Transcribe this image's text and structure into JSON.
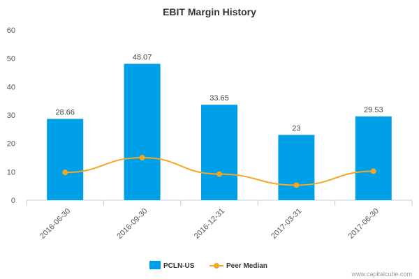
{
  "chart_data": {
    "type": "bar",
    "title": "EBIT Margin History",
    "categories": [
      "2016-06-30",
      "2016-09-30",
      "2016-12-31",
      "2017-03-31",
      "2017-06-30"
    ],
    "series": [
      {
        "name": "PCLN-US",
        "type": "bar",
        "color": "#00a0e9",
        "values": [
          28.66,
          48.07,
          33.65,
          23,
          29.53
        ],
        "labels": [
          "28.66",
          "48.07",
          "33.65",
          "23",
          "29.53"
        ]
      },
      {
        "name": "Peer Median",
        "type": "line",
        "color": "#f5a623",
        "values": [
          9.8,
          15.0,
          9.2,
          5.3,
          10.2
        ]
      }
    ],
    "ylim": [
      0,
      60
    ],
    "yticks": [
      0,
      10,
      20,
      30,
      40,
      50,
      60
    ],
    "grid": false,
    "legend": "bottom-center"
  },
  "credit": "www.capitalcube.com"
}
